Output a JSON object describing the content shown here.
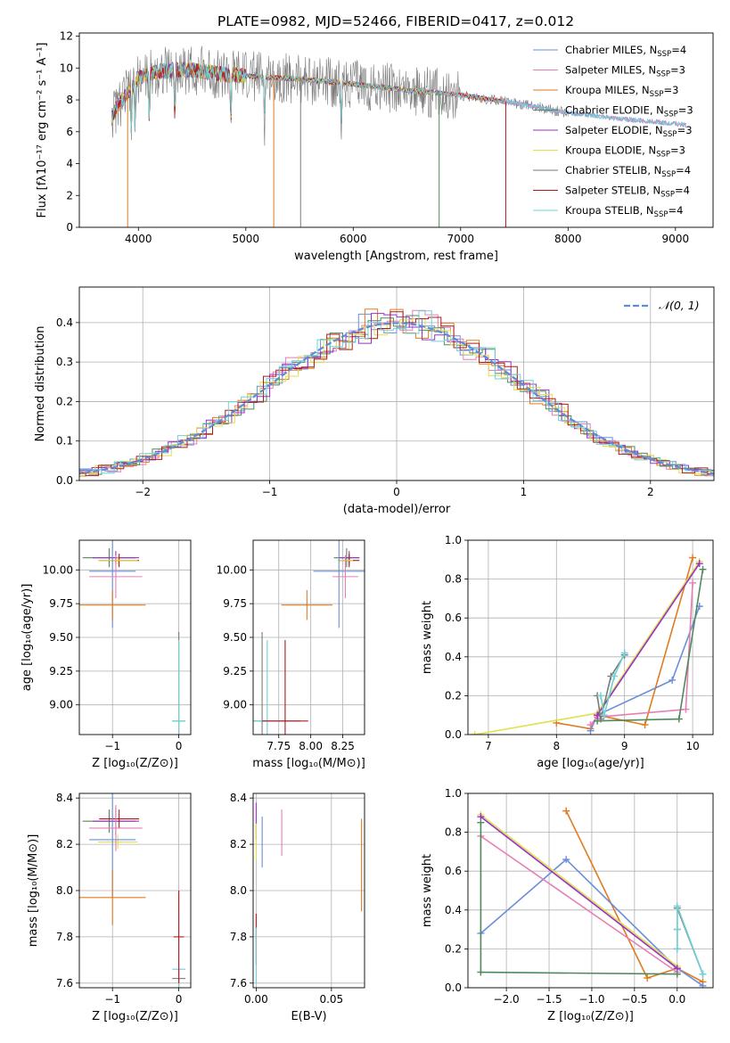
{
  "figure": {
    "title": "PLATE=0982, MJD=52466, FIBERID=0417, z=0.012"
  },
  "chart_data": [
    {
      "id": "spectrum",
      "type": "line",
      "xlabel": "wavelength [Angstrom, rest frame]",
      "ylabel": "Flux [fλ10⁻¹⁷ erg cm⁻² s⁻¹ A⁻¹]",
      "xlim": [
        3450,
        9350
      ],
      "ylim": [
        0,
        12.2
      ],
      "xticks": [
        4000,
        5000,
        6000,
        7000,
        8000,
        9000
      ],
      "yticks": [
        0,
        2,
        4,
        6,
        8,
        10,
        12
      ],
      "grid": false,
      "legend_placement": "top-right",
      "data_span": [
        3750,
        9100
      ],
      "continuum": {
        "x": [
          3750,
          3800,
          3900,
          4000,
          4200,
          4500,
          4800,
          5000,
          5500,
          6000,
          6500,
          7000,
          7500,
          8000,
          8500,
          9000,
          9100
        ],
        "y": [
          7.0,
          7.5,
          8.5,
          9.4,
          9.8,
          9.9,
          9.6,
          9.5,
          9.3,
          9.0,
          8.6,
          8.3,
          7.8,
          7.2,
          6.8,
          6.5,
          6.4
        ]
      },
      "absorption_lines": [
        3934,
        3969,
        4102,
        4340,
        4861,
        5175,
        5890
      ],
      "dropouts": [
        {
          "x": 5260,
          "series": "Kroupa MILES"
        },
        {
          "x": 6800,
          "series": "Chabrier ELODIE"
        },
        {
          "x": 5510,
          "series": "Chabrier STELIB"
        },
        {
          "x": 7420,
          "series": "Salpeter STELIB"
        },
        {
          "x": 3900,
          "series": "Kroupa MILES"
        }
      ],
      "series": [
        {
          "name": "Chabrier MILES",
          "nssp": "4",
          "color": "#6a8fd9",
          "end": 9100
        },
        {
          "name": "Salpeter MILES",
          "nssp": "3",
          "color": "#e67fb5",
          "end": 9100
        },
        {
          "name": "Kroupa MILES",
          "nssp": "3",
          "color": "#e07b20",
          "end": 7400
        },
        {
          "name": "Chabrier ELODIE",
          "nssp": "3",
          "color": "#4f8a5c",
          "end": 6800
        },
        {
          "name": "Salpeter ELODIE",
          "nssp": "3",
          "color": "#9b30c8",
          "end": 6800
        },
        {
          "name": "Kroupa ELODIE",
          "nssp": "3",
          "color": "#dde14a",
          "end": 6800
        },
        {
          "name": "Chabrier STELIB",
          "nssp": "4",
          "color": "#7a7a7a",
          "end": 8000
        },
        {
          "name": "Salpeter STELIB",
          "nssp": "4",
          "color": "#b01a1a",
          "end": 7420
        },
        {
          "name": "Kroupa STELIB",
          "nssp": "4",
          "color": "#6fd0d8",
          "end": 9100
        }
      ]
    },
    {
      "id": "residual-histogram",
      "type": "bar",
      "xlabel": "(data-model)/error",
      "ylabel": "Normed distribution",
      "xlim": [
        -2.5,
        2.5
      ],
      "ylim": [
        0,
        0.49
      ],
      "xticks": [
        -2,
        -1,
        0,
        1,
        2
      ],
      "yticks": [
        0.0,
        0.1,
        0.2,
        0.3,
        0.4
      ],
      "grid": true,
      "legend": [
        {
          "label": "𝒩(0, 1)",
          "color": "#5b8ed6",
          "style": "dashed"
        }
      ],
      "legend_placement": "top-right",
      "bin_width": 0.1,
      "gaussian": {
        "mean": 0,
        "sigma": 1
      },
      "histogram_colors": [
        "#6a8fd9",
        "#e67fb5",
        "#e07b20",
        "#4f8a5c",
        "#9b30c8",
        "#dde14a",
        "#b01a1a",
        "#6fd0d8"
      ]
    },
    {
      "id": "age-vs-Z",
      "type": "scatter",
      "xlabel": "Z [log₁₀(Z/Z⊙)]",
      "ylabel": "age  [log₁₀(age/yr)]",
      "xlim": [
        -1.5,
        0.18
      ],
      "ylim": [
        8.78,
        10.22
      ],
      "xticks": [
        -1,
        0
      ],
      "yticks": [
        9.0,
        9.25,
        9.5,
        9.75,
        10.0
      ],
      "grid": true,
      "points": [
        {
          "x": -1.05,
          "y": 10.09,
          "xerr": 0.4,
          "yerr": 0.07,
          "color": "#4f8a5c"
        },
        {
          "x": -0.95,
          "y": 10.09,
          "xerr": 0.35,
          "yerr": 0.05,
          "color": "#9b30c8"
        },
        {
          "x": -0.9,
          "y": 10.07,
          "xerr": 0.3,
          "yerr": 0.05,
          "color": "#b01a1a"
        },
        {
          "x": -0.92,
          "y": 10.07,
          "xerr": 0.3,
          "yerr": 0.03,
          "color": "#dde14a"
        },
        {
          "x": -1.0,
          "y": 9.99,
          "xerr": 0.35,
          "yerr": 0.42,
          "color": "#6a8fd9"
        },
        {
          "x": -0.95,
          "y": 9.95,
          "xerr": 0.4,
          "yerr": 0.16,
          "color": "#e67fb5"
        },
        {
          "x": -1.0,
          "y": 9.74,
          "xerr": 0.5,
          "yerr": 0.11,
          "color": "#e07b20"
        },
        {
          "x": 0.0,
          "y": 8.88,
          "xerr": 0.1,
          "yerr": 0.66,
          "color": "#7a7a7a"
        },
        {
          "x": 0.0,
          "y": 8.88,
          "xerr": 0.1,
          "yerr": 0.6,
          "color": "#6fd0d8"
        }
      ]
    },
    {
      "id": "age-vs-mass",
      "type": "scatter",
      "xlabel": "mass [log₁₀(M/M⊙)]",
      "ylabel": "",
      "xlim": [
        7.55,
        8.42
      ],
      "ylim": [
        8.78,
        10.22
      ],
      "xticks": [
        7.75,
        8.0,
        8.25
      ],
      "yticks": [
        9.0,
        9.25,
        9.5,
        9.75,
        10.0
      ],
      "grid": true,
      "points": [
        {
          "x": 8.28,
          "y": 10.09,
          "xerr": 0.1,
          "yerr": 0.07,
          "color": "#4f8a5c"
        },
        {
          "x": 8.3,
          "y": 10.09,
          "xerr": 0.08,
          "yerr": 0.05,
          "color": "#9b30c8"
        },
        {
          "x": 8.3,
          "y": 10.07,
          "xerr": 0.08,
          "yerr": 0.05,
          "color": "#b01a1a"
        },
        {
          "x": 8.27,
          "y": 10.07,
          "xerr": 0.06,
          "yerr": 0.03,
          "color": "#dde14a"
        },
        {
          "x": 8.22,
          "y": 9.99,
          "xerr": 0.2,
          "yerr": 0.42,
          "color": "#6a8fd9"
        },
        {
          "x": 8.27,
          "y": 9.95,
          "xerr": 0.1,
          "yerr": 0.16,
          "color": "#e67fb5"
        },
        {
          "x": 7.97,
          "y": 9.74,
          "xerr": 0.2,
          "yerr": 0.11,
          "color": "#e07b20"
        },
        {
          "x": 7.62,
          "y": 8.88,
          "xerr": 0.3,
          "yerr": 0.66,
          "color": "#7a7a7a"
        },
        {
          "x": 7.66,
          "y": 8.88,
          "xerr": 0.2,
          "yerr": 0.6,
          "color": "#6fd0d8"
        },
        {
          "x": 7.8,
          "y": 8.88,
          "xerr": 0.18,
          "yerr": 0.6,
          "color": "#b01a1a"
        }
      ]
    },
    {
      "id": "weight-vs-age",
      "type": "line",
      "xlabel": "age  [log₁₀(age/yr)]",
      "ylabel": "mass weight",
      "xlim": [
        6.7,
        10.3
      ],
      "ylim": [
        0,
        1.0
      ],
      "xticks": [
        7,
        8,
        9,
        10
      ],
      "yticks": [
        0.0,
        0.2,
        0.4,
        0.6,
        0.8,
        1.0
      ],
      "grid": true,
      "series": [
        {
          "color": "#e07b20",
          "x": [
            8.0,
            8.5,
            8.6,
            9.3,
            10.0
          ],
          "y": [
            0.06,
            0.03,
            0.1,
            0.05,
            0.91
          ]
        },
        {
          "color": "#6a8fd9",
          "x": [
            8.5,
            8.6,
            9.7,
            10.1
          ],
          "y": [
            0.02,
            0.1,
            0.28,
            0.66
          ]
        },
        {
          "color": "#e67fb5",
          "x": [
            8.5,
            8.6,
            9.9,
            10.0
          ],
          "y": [
            0.05,
            0.09,
            0.13,
            0.78
          ]
        },
        {
          "color": "#4f8a5c",
          "x": [
            8.6,
            9.8,
            10.15
          ],
          "y": [
            0.07,
            0.08,
            0.85
          ]
        },
        {
          "color": "#dde14a",
          "x": [
            6.8,
            8.6,
            10.1
          ],
          "y": [
            0.0,
            0.11,
            0.89
          ]
        },
        {
          "color": "#9b30c8",
          "x": [
            8.6,
            10.1
          ],
          "y": [
            0.1,
            0.88
          ]
        },
        {
          "color": "#7a7a7a",
          "x": [
            8.6,
            8.65,
            8.8,
            9.0
          ],
          "y": [
            0.2,
            0.08,
            0.3,
            0.41
          ]
        },
        {
          "color": "#6fd0d8",
          "x": [
            8.65,
            8.7,
            8.85,
            9.0
          ],
          "y": [
            0.2,
            0.1,
            0.3,
            0.42
          ]
        }
      ]
    },
    {
      "id": "mass-vs-Z",
      "type": "scatter",
      "xlabel": "Z [log₁₀(Z/Z⊙)]",
      "ylabel": "mass [log₁₀(M/M⊙)]",
      "xlim": [
        -1.5,
        0.18
      ],
      "ylim": [
        7.58,
        8.42
      ],
      "xticks": [
        -1,
        0
      ],
      "yticks": [
        7.6,
        7.8,
        8.0,
        8.2,
        8.4
      ],
      "grid": true,
      "points": [
        {
          "x": -1.05,
          "y": 8.3,
          "xerr": 0.4,
          "yerr": 0.05,
          "color": "#4f8a5c"
        },
        {
          "x": -0.95,
          "y": 8.3,
          "xerr": 0.35,
          "yerr": 0.06,
          "color": "#9b30c8"
        },
        {
          "x": -0.9,
          "y": 8.31,
          "xerr": 0.3,
          "yerr": 0.04,
          "color": "#b01a1a"
        },
        {
          "x": -0.92,
          "y": 8.21,
          "xerr": 0.3,
          "yerr": 0.03,
          "color": "#dde14a"
        },
        {
          "x": -1.0,
          "y": 8.22,
          "xerr": 0.35,
          "yerr": 0.25,
          "color": "#6a8fd9"
        },
        {
          "x": -0.95,
          "y": 8.27,
          "xerr": 0.4,
          "yerr": 0.1,
          "color": "#e67fb5"
        },
        {
          "x": -1.0,
          "y": 7.97,
          "xerr": 0.5,
          "yerr": 0.12,
          "color": "#e07b20"
        },
        {
          "x": 0.0,
          "y": 7.62,
          "xerr": 0.1,
          "yerr": 0.04,
          "color": "#7a7a7a"
        },
        {
          "x": 0.0,
          "y": 7.66,
          "xerr": 0.1,
          "yerr": 0.24,
          "color": "#6fd0d8"
        },
        {
          "x": 0.0,
          "y": 7.8,
          "xerr": 0.08,
          "yerr": 0.2,
          "color": "#b01a1a"
        }
      ]
    },
    {
      "id": "mass-vs-ebv",
      "type": "scatter",
      "xlabel": "E(B-V)",
      "ylabel": "",
      "xlim": [
        -0.002,
        0.072
      ],
      "ylim": [
        7.58,
        8.42
      ],
      "xticks": [
        0.0,
        0.05
      ],
      "yticks": [
        7.6,
        7.8,
        8.0,
        8.2,
        8.4
      ],
      "grid": true,
      "points": [
        {
          "x": 0.0,
          "y": 8.3,
          "xerr": 0,
          "yerr": 0.08,
          "color": "#9b30c8"
        },
        {
          "x": 0.0,
          "y": 8.21,
          "xerr": 0,
          "yerr": 0.08,
          "color": "#dde14a"
        },
        {
          "x": 0.004,
          "y": 8.21,
          "xerr": 0,
          "yerr": 0.11,
          "color": "#6a8fd9"
        },
        {
          "x": 0.017,
          "y": 8.25,
          "xerr": 0,
          "yerr": 0.1,
          "color": "#e67fb5"
        },
        {
          "x": 0.07,
          "y": 8.11,
          "xerr": 0,
          "yerr": 0.2,
          "color": "#e07b20"
        },
        {
          "x": 0.0,
          "y": 7.79,
          "xerr": 0,
          "yerr": 0.11,
          "color": "#b01a1a"
        },
        {
          "x": 0.0,
          "y": 7.72,
          "xerr": 0,
          "yerr": 0.12,
          "color": "#6fd0d8"
        }
      ]
    },
    {
      "id": "weight-vs-Z",
      "type": "line",
      "xlabel": "Z [log₁₀(Z/Z⊙)]",
      "ylabel": "mass weight",
      "xlim": [
        -2.45,
        0.42
      ],
      "ylim": [
        0,
        1.0
      ],
      "xticks": [
        -2.0,
        -1.5,
        -1.0,
        -0.5,
        0.0
      ],
      "yticks": [
        0.0,
        0.2,
        0.4,
        0.6,
        0.8,
        1.0
      ],
      "grid": true,
      "series": [
        {
          "color": "#e07b20",
          "x": [
            -1.3,
            -0.35,
            0.0,
            0.3
          ],
          "y": [
            0.91,
            0.05,
            0.1,
            0.03
          ]
        },
        {
          "color": "#6a8fd9",
          "x": [
            -2.3,
            -1.3,
            0.0,
            0.3
          ],
          "y": [
            0.28,
            0.66,
            0.1,
            0.01
          ]
        },
        {
          "color": "#e67fb5",
          "x": [
            -2.3,
            0.0
          ],
          "y": [
            0.78,
            0.08
          ]
        },
        {
          "color": "#dde14a",
          "x": [
            -2.3,
            0.0
          ],
          "y": [
            0.89,
            0.11
          ]
        },
        {
          "color": "#9b30c8",
          "x": [
            -2.3,
            0.0
          ],
          "y": [
            0.88,
            0.1
          ]
        },
        {
          "color": "#7a7a7a",
          "x": [
            0.0,
            0.0,
            0.0,
            0.3
          ],
          "y": [
            0.2,
            0.3,
            0.41,
            0.07
          ]
        },
        {
          "color": "#6fd0d8",
          "x": [
            0.0,
            0.0,
            0.0,
            0.3
          ],
          "y": [
            0.2,
            0.3,
            0.42,
            0.07
          ]
        },
        {
          "color": "#4f8a5c",
          "x": [
            -2.3,
            -2.3,
            0.0
          ],
          "y": [
            0.85,
            0.08,
            0.07
          ]
        }
      ]
    }
  ]
}
